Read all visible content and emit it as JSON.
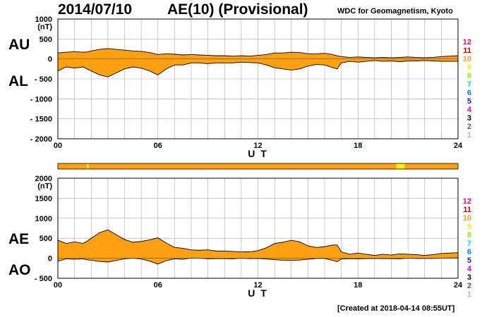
{
  "header": {
    "date": "2014/07/10",
    "title": "AE(10) (Provisional)",
    "source": "WDC for Geomagnetism, Kyoto",
    "created": "[Created at 2018-04-14 08:55UT]"
  },
  "colors": {
    "fill": "#FFA010",
    "stroke": "#000000",
    "grid": "#AAAAAA",
    "bar_default": "#FFA010",
    "bar_highlight": "#FFFF30"
  },
  "legend": {
    "items": [
      {
        "label": "12",
        "color": "#FF0080"
      },
      {
        "label": "11",
        "color": "#E00000"
      },
      {
        "label": "10",
        "color": "#FFA010"
      },
      {
        "label": "9",
        "color": "#FFF000"
      },
      {
        "label": "8",
        "color": "#90F000"
      },
      {
        "label": "7",
        "color": "#00E0E0"
      },
      {
        "label": "6",
        "color": "#0080FF"
      },
      {
        "label": "5",
        "color": "#2020C0"
      },
      {
        "label": "4",
        "color": "#E000E0"
      },
      {
        "label": "3",
        "color": "#000000"
      },
      {
        "label": "2",
        "color": "#606060"
      },
      {
        "label": "1",
        "color": "#BBBBBB"
      }
    ]
  },
  "station_bar": {
    "segments": [
      {
        "start": 0,
        "end": 1.75,
        "level": "10"
      },
      {
        "start": 1.75,
        "end": 1.85,
        "level": "9"
      },
      {
        "start": 1.85,
        "end": 20.3,
        "level": "10"
      },
      {
        "start": 20.3,
        "end": 20.8,
        "level": "9"
      },
      {
        "start": 20.8,
        "end": 24,
        "level": "10"
      }
    ]
  },
  "chart_data": [
    {
      "type": "area",
      "name": "AU/AL",
      "xlabel": "U T",
      "xlim": [
        0,
        24
      ],
      "ylim": [
        -2000,
        1000
      ],
      "yunit": "(nT)",
      "xticks": [
        0,
        6,
        12,
        18,
        24
      ],
      "xtick_labels": [
        "00",
        "06",
        "12",
        "18",
        "24"
      ],
      "yticks": [
        1000,
        500,
        0,
        -500,
        -1000,
        -1500,
        -2000
      ],
      "ytick_labels": [
        "1000",
        "500",
        "0",
        "- 500",
        "- 1000",
        "- 1500",
        "- 2000"
      ],
      "ylabel_upper": "AU",
      "ylabel_lower": "AL",
      "x": [
        0,
        0.5,
        1,
        1.5,
        1.75,
        2,
        2.5,
        3,
        3.5,
        4,
        4.5,
        5,
        5.5,
        6,
        6.5,
        7,
        7.5,
        8,
        8.5,
        9,
        9.5,
        10,
        10.5,
        11,
        11.5,
        12,
        12.5,
        13,
        13.5,
        14,
        14.5,
        15,
        15.5,
        16,
        16.5,
        16.75,
        17,
        17.5,
        18,
        18.5,
        19,
        19.5,
        20,
        20.5,
        21,
        21.5,
        22,
        22.5,
        23,
        23.5,
        24
      ],
      "series": [
        {
          "name": "AU",
          "values": [
            150,
            170,
            180,
            170,
            175,
            200,
            240,
            260,
            240,
            220,
            200,
            190,
            160,
            110,
            130,
            120,
            100,
            110,
            100,
            90,
            80,
            80,
            70,
            80,
            70,
            90,
            110,
            150,
            150,
            170,
            160,
            130,
            130,
            140,
            110,
            80,
            60,
            40,
            50,
            40,
            30,
            40,
            30,
            40,
            50,
            40,
            30,
            40,
            60,
            70,
            80
          ]
        },
        {
          "name": "AL",
          "values": [
            -300,
            -200,
            -230,
            -200,
            -250,
            -300,
            -400,
            -450,
            -350,
            -250,
            -200,
            -230,
            -300,
            -400,
            -250,
            -150,
            -150,
            -100,
            -100,
            -120,
            -100,
            -100,
            -100,
            -80,
            -90,
            -100,
            -150,
            -220,
            -250,
            -280,
            -250,
            -180,
            -140,
            -150,
            -220,
            -250,
            -100,
            -60,
            -80,
            -60,
            -40,
            -60,
            -50,
            -70,
            -50,
            -50,
            -40,
            -50,
            -60,
            -60,
            -60
          ]
        }
      ]
    },
    {
      "type": "area",
      "name": "AE/AO",
      "xlabel": "U T",
      "xlim": [
        0,
        24
      ],
      "ylim": [
        -500,
        2000
      ],
      "yunit": "(nT)",
      "xticks": [
        0,
        6,
        12,
        18,
        24
      ],
      "xtick_labels": [
        "00",
        "06",
        "12",
        "18",
        "24"
      ],
      "yticks": [
        2000,
        1500,
        1000,
        500,
        0,
        -500
      ],
      "ytick_labels": [
        "2000",
        "1500",
        "1000",
        "500",
        "0",
        "- 500"
      ],
      "ylabel_upper": "AE",
      "ylabel_lower": "AO",
      "x": [
        0,
        0.5,
        1,
        1.5,
        1.75,
        2,
        2.5,
        3,
        3.5,
        4,
        4.5,
        5,
        5.5,
        6,
        6.5,
        7,
        7.5,
        8,
        8.5,
        9,
        9.5,
        10,
        10.5,
        11,
        11.5,
        12,
        12.5,
        13,
        13.5,
        14,
        14.5,
        15,
        15.5,
        16,
        16.5,
        16.75,
        17,
        17.5,
        18,
        18.5,
        19,
        19.5,
        20,
        20.5,
        21,
        21.5,
        22,
        22.5,
        23,
        23.5,
        24
      ],
      "series": [
        {
          "name": "AE",
          "values": [
            450,
            370,
            410,
            370,
            425,
            500,
            640,
            710,
            590,
            470,
            400,
            420,
            460,
            510,
            380,
            270,
            250,
            210,
            200,
            210,
            180,
            180,
            170,
            160,
            160,
            190,
            260,
            370,
            400,
            450,
            410,
            310,
            270,
            290,
            330,
            330,
            160,
            100,
            130,
            100,
            70,
            100,
            80,
            110,
            100,
            90,
            70,
            90,
            120,
            130,
            140
          ]
        },
        {
          "name": "AO",
          "values": [
            -75,
            -15,
            -25,
            -15,
            -38,
            -50,
            -80,
            -95,
            -55,
            -15,
            0,
            -20,
            -70,
            -145,
            -60,
            -15,
            -25,
            5,
            0,
            -15,
            -10,
            -10,
            -15,
            0,
            -10,
            -5,
            -20,
            -35,
            -50,
            -55,
            -45,
            -25,
            -5,
            -5,
            -55,
            -85,
            -20,
            -10,
            -15,
            -10,
            -5,
            -10,
            -10,
            -15,
            0,
            -5,
            -5,
            -5,
            0,
            5,
            10
          ]
        }
      ]
    }
  ]
}
